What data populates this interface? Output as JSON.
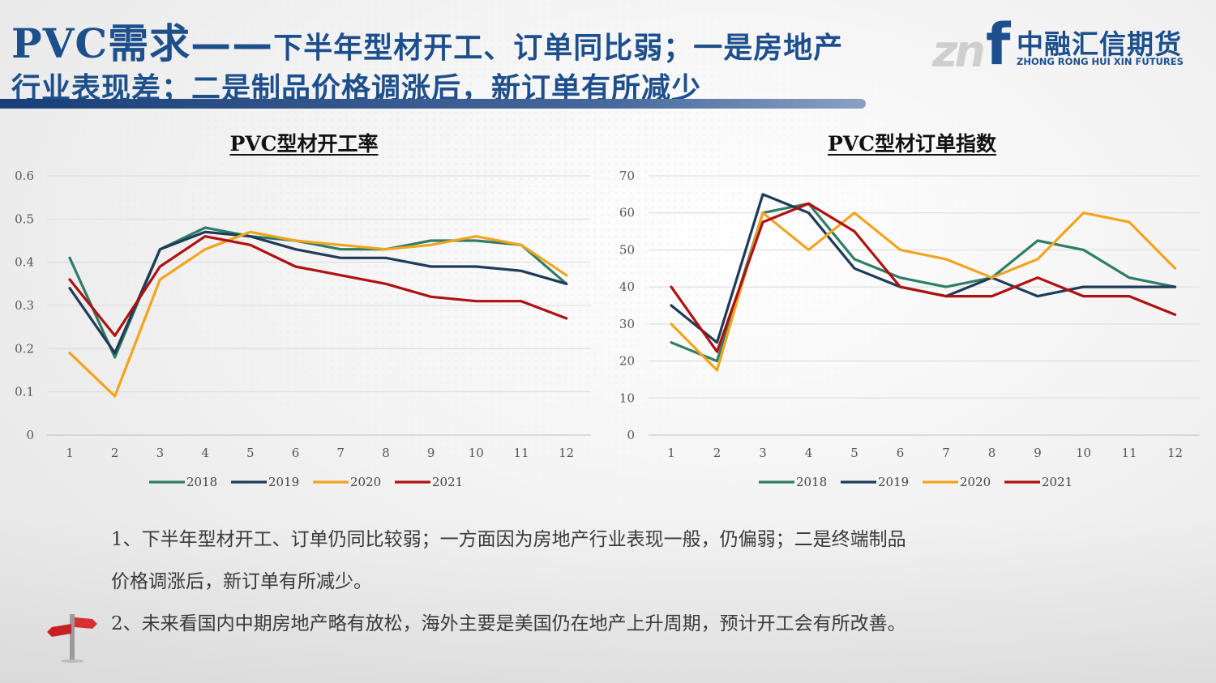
{
  "header": {
    "title_main": "PVC需求——",
    "title_rest_line1": "下半年型材开工、订单同比弱；一是房地产",
    "title_line2": "行业表现差；二是制品价格调涨后，新订单有所减少"
  },
  "logo": {
    "mark": "zn",
    "letter": "f",
    "name_cn": "中融汇信期货",
    "name_en": "ZHONG RONG HUI XIN FUTURES"
  },
  "colors": {
    "2018": "#2e7d68",
    "2019": "#1f3b57",
    "2020": "#f2a41e",
    "2021": "#b01010"
  },
  "chart_data": [
    {
      "type": "line",
      "title": "PVC型材开工率",
      "x": [
        "1",
        "2",
        "3",
        "4",
        "5",
        "6",
        "7",
        "8",
        "9",
        "10",
        "11",
        "12"
      ],
      "yticks": [
        "0",
        "0.1",
        "0.2",
        "0.3",
        "0.4",
        "0.5",
        "0.6"
      ],
      "ylim": [
        0,
        0.6
      ],
      "legend_position": "bottom",
      "series": [
        {
          "name": "2018",
          "values": [
            0.41,
            0.18,
            0.43,
            0.48,
            0.46,
            0.45,
            0.43,
            0.43,
            0.45,
            0.45,
            0.44,
            0.35
          ]
        },
        {
          "name": "2019",
          "values": [
            0.34,
            0.19,
            0.43,
            0.47,
            0.46,
            0.43,
            0.41,
            0.41,
            0.39,
            0.39,
            0.38,
            0.35
          ]
        },
        {
          "name": "2020",
          "values": [
            0.19,
            0.09,
            0.36,
            0.43,
            0.47,
            0.45,
            0.44,
            0.43,
            0.44,
            0.46,
            0.44,
            0.37
          ]
        },
        {
          "name": "2021",
          "values": [
            0.36,
            0.23,
            0.39,
            0.46,
            0.44,
            0.39,
            0.37,
            0.35,
            0.32,
            0.31,
            0.31,
            0.27
          ]
        }
      ]
    },
    {
      "type": "line",
      "title": "PVC型材订单指数",
      "x": [
        "1",
        "2",
        "3",
        "4",
        "5",
        "6",
        "7",
        "8",
        "9",
        "10",
        "11",
        "12"
      ],
      "yticks": [
        "0",
        "10",
        "20",
        "30",
        "40",
        "50",
        "60",
        "70"
      ],
      "ylim": [
        0,
        70
      ],
      "legend_position": "bottom",
      "series": [
        {
          "name": "2018",
          "values": [
            25,
            20,
            60,
            62.5,
            47.5,
            42.5,
            40,
            42.5,
            52.5,
            50,
            42.5,
            40
          ]
        },
        {
          "name": "2019",
          "values": [
            35,
            25,
            65,
            60,
            45,
            40,
            37.5,
            42.5,
            37.5,
            40,
            40,
            40
          ]
        },
        {
          "name": "2020",
          "values": [
            30,
            17.5,
            60,
            50,
            60,
            50,
            47.5,
            42.5,
            47.5,
            60,
            57.5,
            45
          ]
        },
        {
          "name": "2021",
          "values": [
            40,
            22.5,
            57.5,
            62.5,
            55,
            40,
            37.5,
            37.5,
            42.5,
            37.5,
            37.5,
            32.5
          ]
        }
      ]
    }
  ],
  "notes": [
    "1、下半年型材开工、订单仍同比较弱；一方面因为房地产行业表现一般，仍偏弱；二是终端制品",
    "价格调涨后，新订单有所减少。",
    "2、未来看国内中期房地产略有放松，海外主要是美国仍在地产上升周期，预计开工会有所改善。"
  ]
}
